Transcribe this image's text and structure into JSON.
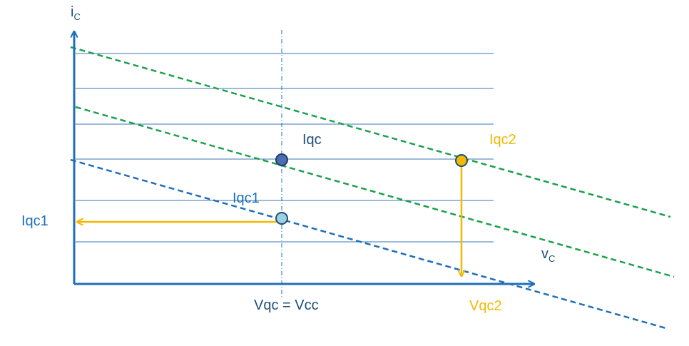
{
  "axes": {
    "y_label": "i",
    "y_sub": "C",
    "x_label": "v",
    "x_sub": "C"
  },
  "labels": {
    "iqc": "Iqc",
    "iqc1": "Iqc1",
    "iqc1_axis": "Iqc1",
    "iqc2": "Iqc2",
    "vqc": "Vqc = Vcc",
    "vqc2": "Vqc2"
  },
  "colors": {
    "axis": "#1f6fb8",
    "grid": "#3a77b5",
    "load_line_blue": "#1f6fb8",
    "load_line_green": "#1aa14a",
    "projection": "#f5b800",
    "label_blue": "#1f6fb8",
    "label_dark": "#1f4e79",
    "label_orange": "#f5b800",
    "point_dark": "#4a6eb0",
    "point_light": "#9dd0e0",
    "point_orange": "#f5b800"
  }
}
